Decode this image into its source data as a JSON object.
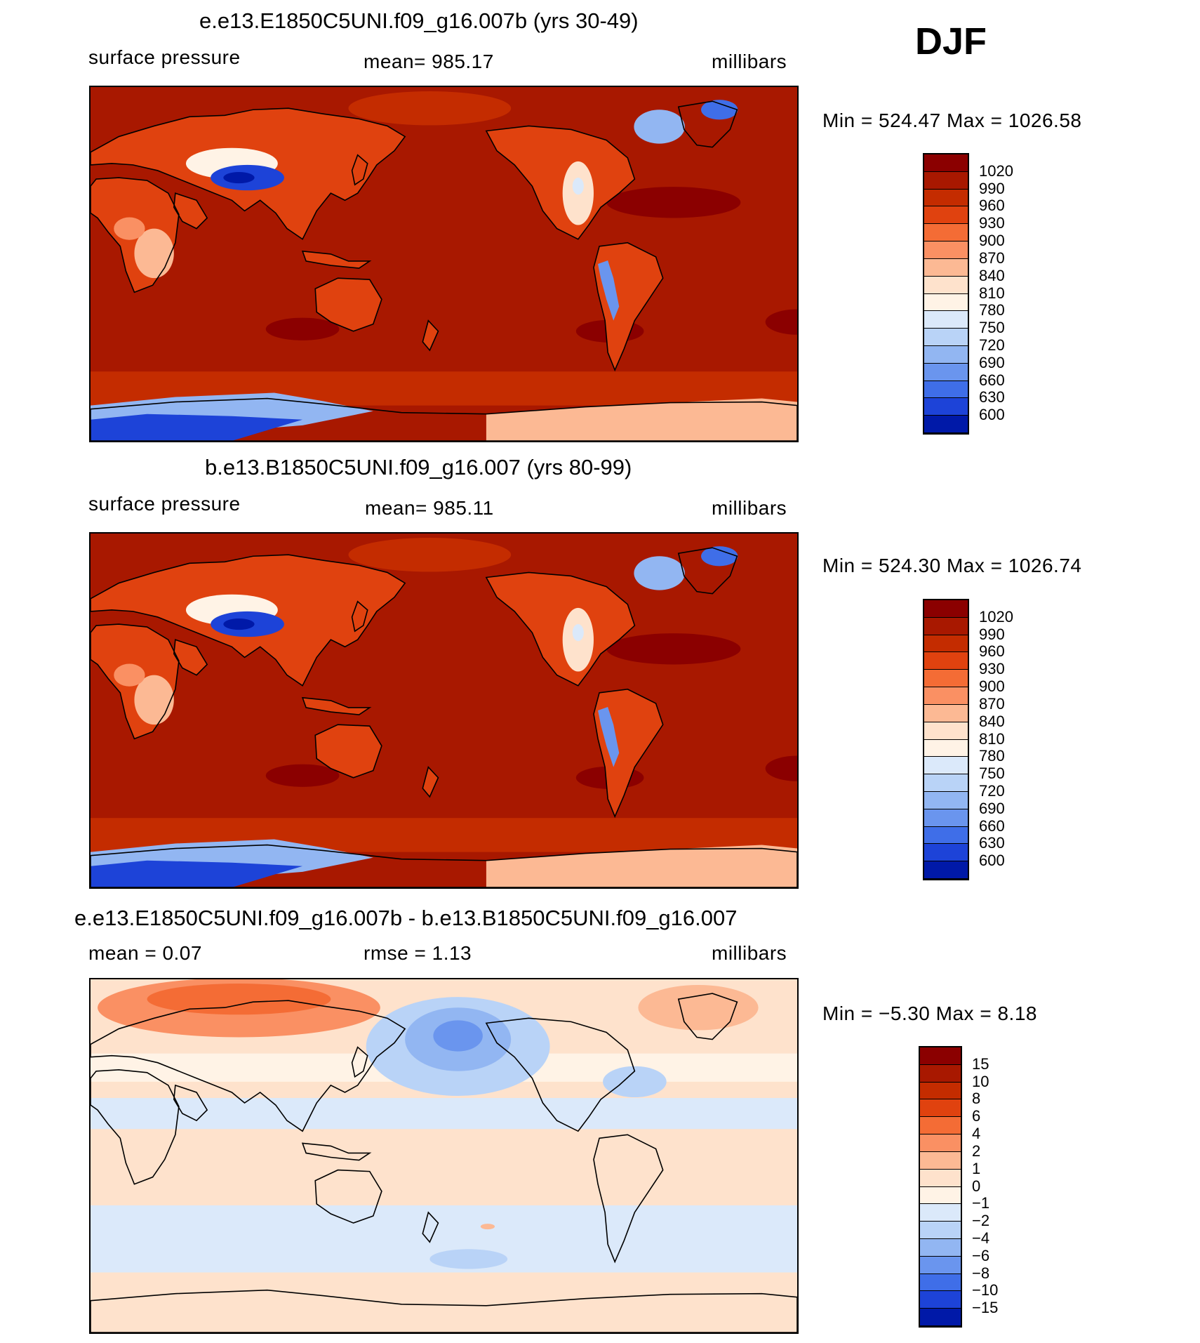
{
  "season": "DJF",
  "panels": [
    {
      "title": "e.e13.E1850C5UNI.f09_g16.007b (yrs 30-49)",
      "left_label": "surface pressure",
      "center_label": "mean=  985.17",
      "right_label": "millibars",
      "stats": "Min  =  524.47  Max  =  1026.58",
      "type": "field",
      "colorbar_labels": [
        "1020",
        "990",
        "960",
        "930",
        "900",
        "870",
        "840",
        "810",
        "780",
        "750",
        "720",
        "690",
        "660",
        "630",
        "600"
      ],
      "colorbar_colors": [
        "#8b0000",
        "#a81800",
        "#c42c00",
        "#e0420f",
        "#f46c35",
        "#fa9063",
        "#fcb994",
        "#fee2cc",
        "#fff3e6",
        "#dbe9fa",
        "#b9d3f7",
        "#92b6f2",
        "#6a95ee",
        "#3f6ee8",
        "#1d43d8",
        "#0019a8"
      ]
    },
    {
      "title": "b.e13.B1850C5UNI.f09_g16.007 (yrs 80-99)",
      "left_label": "surface pressure",
      "center_label": "mean=  985.11",
      "right_label": "millibars",
      "stats": "Min  =  524.30  Max  =  1026.74",
      "type": "field",
      "colorbar_labels": [
        "1020",
        "990",
        "960",
        "930",
        "900",
        "870",
        "840",
        "810",
        "780",
        "750",
        "720",
        "690",
        "660",
        "630",
        "600"
      ],
      "colorbar_colors": [
        "#8b0000",
        "#a81800",
        "#c42c00",
        "#e0420f",
        "#f46c35",
        "#fa9063",
        "#fcb994",
        "#fee2cc",
        "#fff3e6",
        "#dbe9fa",
        "#b9d3f7",
        "#92b6f2",
        "#6a95ee",
        "#3f6ee8",
        "#1d43d8",
        "#0019a8"
      ]
    },
    {
      "title": "e.e13.E1850C5UNI.f09_g16.007b - b.e13.B1850C5UNI.f09_g16.007",
      "left_label": "mean =     0.07",
      "center_label": "rmse =     1.13",
      "right_label": "millibars",
      "stats": "Min  =    −5.30  Max  =     8.18",
      "type": "diff",
      "colorbar_labels": [
        "15",
        "10",
        "8",
        "6",
        "4",
        "2",
        "1",
        "0",
        "−1",
        "−2",
        "−4",
        "−6",
        "−8",
        "−10",
        "−15"
      ],
      "colorbar_colors": [
        "#8b0000",
        "#a81800",
        "#c42c00",
        "#e0420f",
        "#f46c35",
        "#fa9063",
        "#fcb994",
        "#fee2cc",
        "#fff3e6",
        "#dbe9fa",
        "#b9d3f7",
        "#92b6f2",
        "#6a95ee",
        "#3f6ee8",
        "#1d43d8",
        "#0019a8"
      ]
    }
  ]
}
